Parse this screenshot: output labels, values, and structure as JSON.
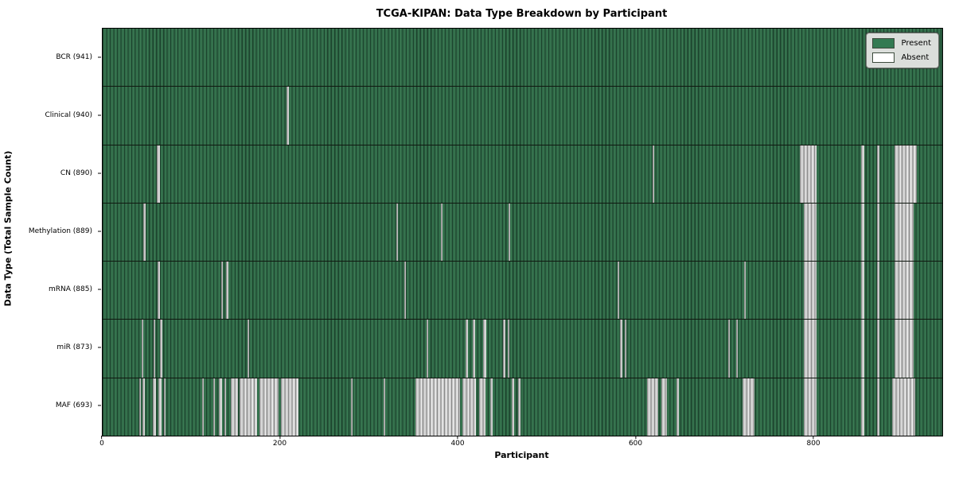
{
  "title": "TCGA-KIPAN: Data Type Breakdown by Participant",
  "xlabel": "Participant",
  "ylabel": "Data Type (Total Sample Count)",
  "legend": {
    "present_label": "Present",
    "absent_label": "Absent"
  },
  "colors": {
    "present_fill": "#337a52",
    "present_dark_edge": "#1d452e",
    "present_light_center": "#3b7b53",
    "absent_fill": "#c0c0c0",
    "absent_light_center": "#ededed",
    "absent_dark_edge": "#8e8e8e",
    "legend_background": "#dbdedb",
    "frame": "#000000"
  },
  "chart_data": {
    "type": "heatmap",
    "title": "TCGA-KIPAN: Data Type Breakdown by Participant",
    "xlabel": "Participant",
    "ylabel": "Data Type (Total Sample Count)",
    "legend_entries": [
      "Present",
      "Absent"
    ],
    "legend_position": "upper right",
    "x_ticks": [
      0,
      200,
      400,
      600,
      800
    ],
    "x_max": 944,
    "n_participants": 941,
    "grid": false,
    "rows": [
      {
        "label": "BCR (941)",
        "data_type": "BCR",
        "sample_count": 941,
        "absent_ranges": []
      },
      {
        "label": "Clinical (940)",
        "data_type": "Clinical",
        "sample_count": 940,
        "absent_ranges": [
          [
            207,
            209
          ]
        ]
      },
      {
        "label": "CN (890)",
        "data_type": "CN",
        "sample_count": 890,
        "absent_ranges": [
          [
            61,
            64
          ],
          [
            618,
            620
          ],
          [
            784,
            803
          ],
          [
            853,
            856
          ],
          [
            871,
            873
          ],
          [
            890,
            915
          ]
        ]
      },
      {
        "label": "Methylation (889)",
        "data_type": "Methylation",
        "sample_count": 889,
        "absent_ranges": [
          [
            46,
            48
          ],
          [
            330,
            332
          ],
          [
            380,
            382
          ],
          [
            456,
            458
          ],
          [
            788,
            803
          ],
          [
            853,
            856
          ],
          [
            871,
            873
          ],
          [
            890,
            912
          ]
        ]
      },
      {
        "label": "mRNA (885)",
        "data_type": "mRNA",
        "sample_count": 885,
        "absent_ranges": [
          [
            62,
            64
          ],
          [
            133,
            135
          ],
          [
            139,
            141
          ],
          [
            339,
            341
          ],
          [
            579,
            581
          ],
          [
            721,
            723
          ],
          [
            788,
            803
          ],
          [
            853,
            856
          ],
          [
            871,
            873
          ],
          [
            890,
            912
          ]
        ]
      },
      {
        "label": "miR (873)",
        "data_type": "miR",
        "sample_count": 873,
        "absent_ranges": [
          [
            44,
            46
          ],
          [
            57,
            59
          ],
          [
            64,
            67
          ],
          [
            163,
            165
          ],
          [
            364,
            366
          ],
          [
            408,
            411
          ],
          [
            416,
            419
          ],
          [
            428,
            431
          ],
          [
            450,
            453
          ],
          [
            455,
            457
          ],
          [
            582,
            584
          ],
          [
            587,
            589
          ],
          [
            703,
            705
          ],
          [
            712,
            714
          ],
          [
            788,
            803
          ],
          [
            853,
            856
          ],
          [
            871,
            873
          ],
          [
            890,
            912
          ]
        ]
      },
      {
        "label": "MAF (693)",
        "data_type": "MAF",
        "sample_count": 693,
        "absent_ranges": [
          [
            41,
            43
          ],
          [
            45,
            47
          ],
          [
            56,
            60
          ],
          [
            63,
            66
          ],
          [
            69,
            71
          ],
          [
            112,
            114
          ],
          [
            124,
            126
          ],
          [
            131,
            134
          ],
          [
            137,
            139
          ],
          [
            144,
            152
          ],
          [
            154,
            174
          ],
          [
            176,
            198
          ],
          [
            200,
            220
          ],
          [
            279,
            281
          ],
          [
            316,
            318
          ],
          [
            352,
            402
          ],
          [
            404,
            420
          ],
          [
            423,
            430
          ],
          [
            436,
            438
          ],
          [
            460,
            463
          ],
          [
            467,
            470
          ],
          [
            612,
            625
          ],
          [
            628,
            634
          ],
          [
            645,
            648
          ],
          [
            719,
            733
          ],
          [
            788,
            803
          ],
          [
            853,
            856
          ],
          [
            871,
            873
          ],
          [
            888,
            914
          ]
        ]
      }
    ]
  }
}
